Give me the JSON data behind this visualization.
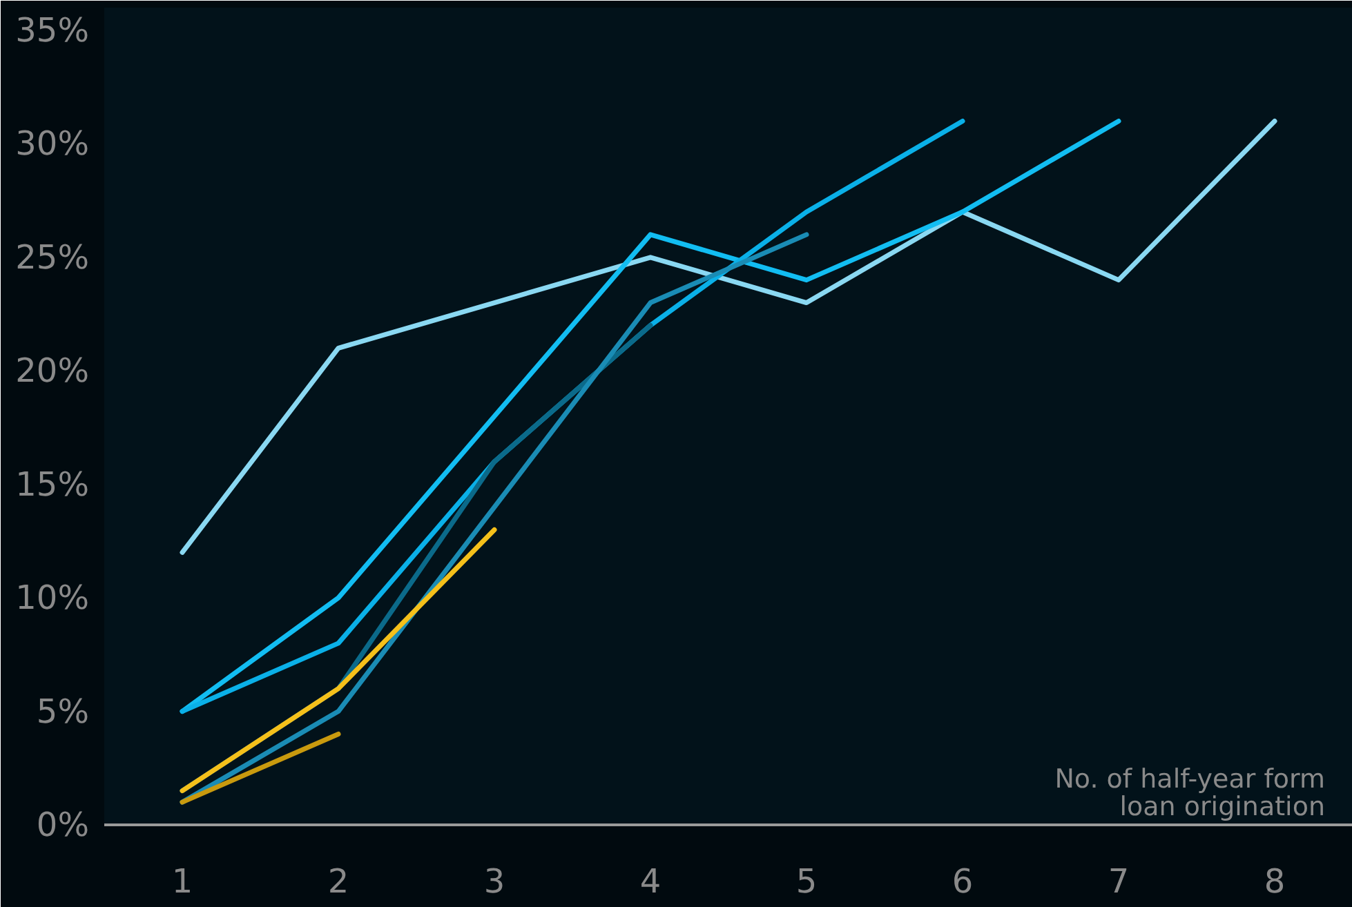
{
  "chart_data": {
    "type": "line",
    "xlabel": "No. of half-year form\nloan origination",
    "x": [
      1,
      2,
      3,
      4,
      5,
      6,
      7,
      8
    ],
    "series": [
      {
        "color": "#8ad8f2",
        "values": [
          12,
          21,
          23,
          25,
          23,
          27,
          24,
          31
        ]
      },
      {
        "color": "#12bdf2",
        "values": [
          5,
          10,
          18,
          26,
          24,
          27,
          31,
          null
        ]
      },
      {
        "color": "#0ab0e8",
        "values": [
          5,
          8,
          16,
          22,
          27,
          31,
          null,
          null
        ]
      },
      {
        "color": "#0b6a8a",
        "values": [
          1.5,
          6,
          16,
          22,
          null,
          null,
          null,
          null
        ]
      },
      {
        "color": "#1a8cb5",
        "values": [
          1,
          5,
          14,
          23,
          26,
          null,
          null,
          null
        ]
      },
      {
        "color": "#c99a0e",
        "values": [
          1,
          4,
          null,
          null,
          null,
          null,
          null,
          null
        ]
      },
      {
        "color": "#f5c01a",
        "values": [
          1.5,
          6,
          13,
          null,
          null,
          null,
          null,
          null
        ]
      }
    ],
    "xlim": [
      0.5,
      8.5
    ],
    "xticks": [
      1,
      2,
      3,
      4,
      5,
      6,
      7,
      8
    ],
    "ylim": [
      0,
      36
    ],
    "yticks": [
      {
        "value": 0,
        "label": "0%"
      },
      {
        "value": 5,
        "label": "5%"
      },
      {
        "value": 10,
        "label": "10%"
      },
      {
        "value": 15,
        "label": "15%"
      },
      {
        "value": 20,
        "label": "20%"
      },
      {
        "value": 25,
        "label": "25%"
      },
      {
        "value": 30,
        "label": "30%"
      },
      {
        "value": 35,
        "label": "35%"
      }
    ],
    "grid": false,
    "marker": "none",
    "line_style": "solid"
  }
}
